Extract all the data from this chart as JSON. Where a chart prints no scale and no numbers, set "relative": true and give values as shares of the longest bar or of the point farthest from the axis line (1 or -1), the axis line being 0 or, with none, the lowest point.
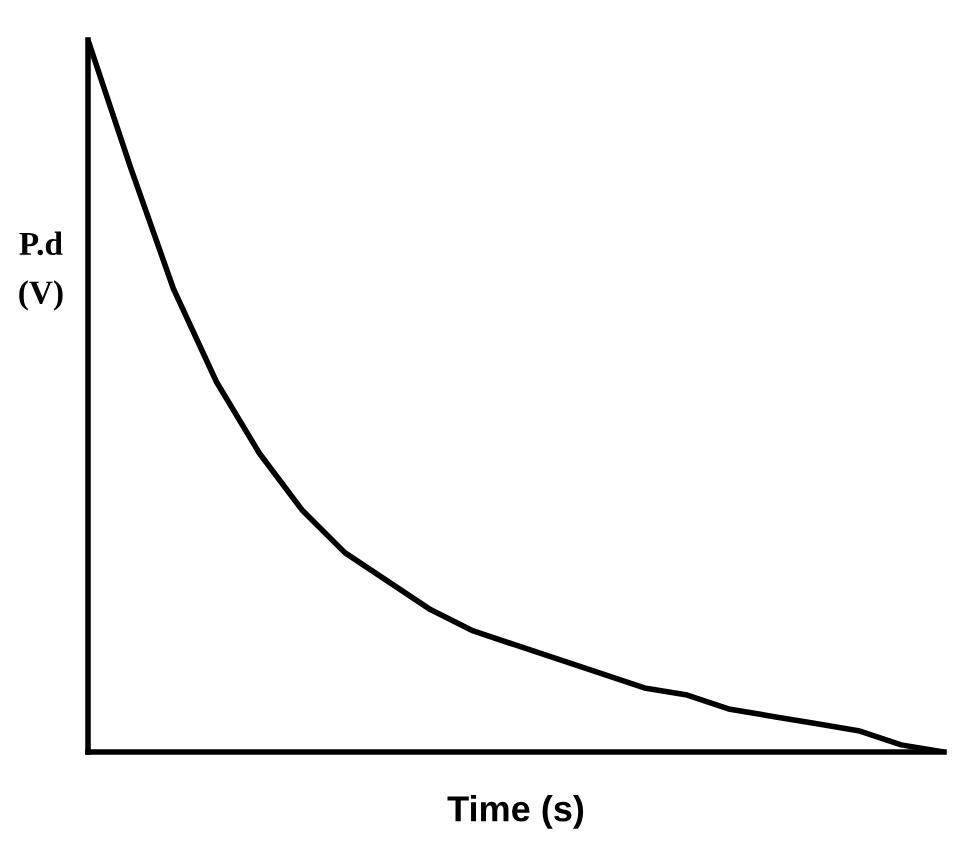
{
  "chart_data": {
    "type": "line",
    "relative": true,
    "xlabel": "Time (s)",
    "ylabel": "P.d\n(V)",
    "categories": [
      null,
      null,
      null,
      null,
      null,
      null,
      null,
      null,
      null,
      null,
      null,
      null,
      null,
      null,
      null,
      null,
      null,
      null,
      null,
      null,
      null
    ],
    "series": [
      {
        "color": "#000000",
        "values": [
          1.0,
          0.82,
          0.65,
          0.52,
          0.42,
          0.34,
          0.28,
          0.24,
          0.2,
          0.17,
          0.15,
          0.13,
          0.11,
          0.09,
          0.08,
          0.06,
          0.05,
          0.04,
          0.03,
          0.01,
          0.0
        ]
      }
    ],
    "grid": false,
    "legend": false,
    "marker": "none",
    "line_style": "solid"
  }
}
